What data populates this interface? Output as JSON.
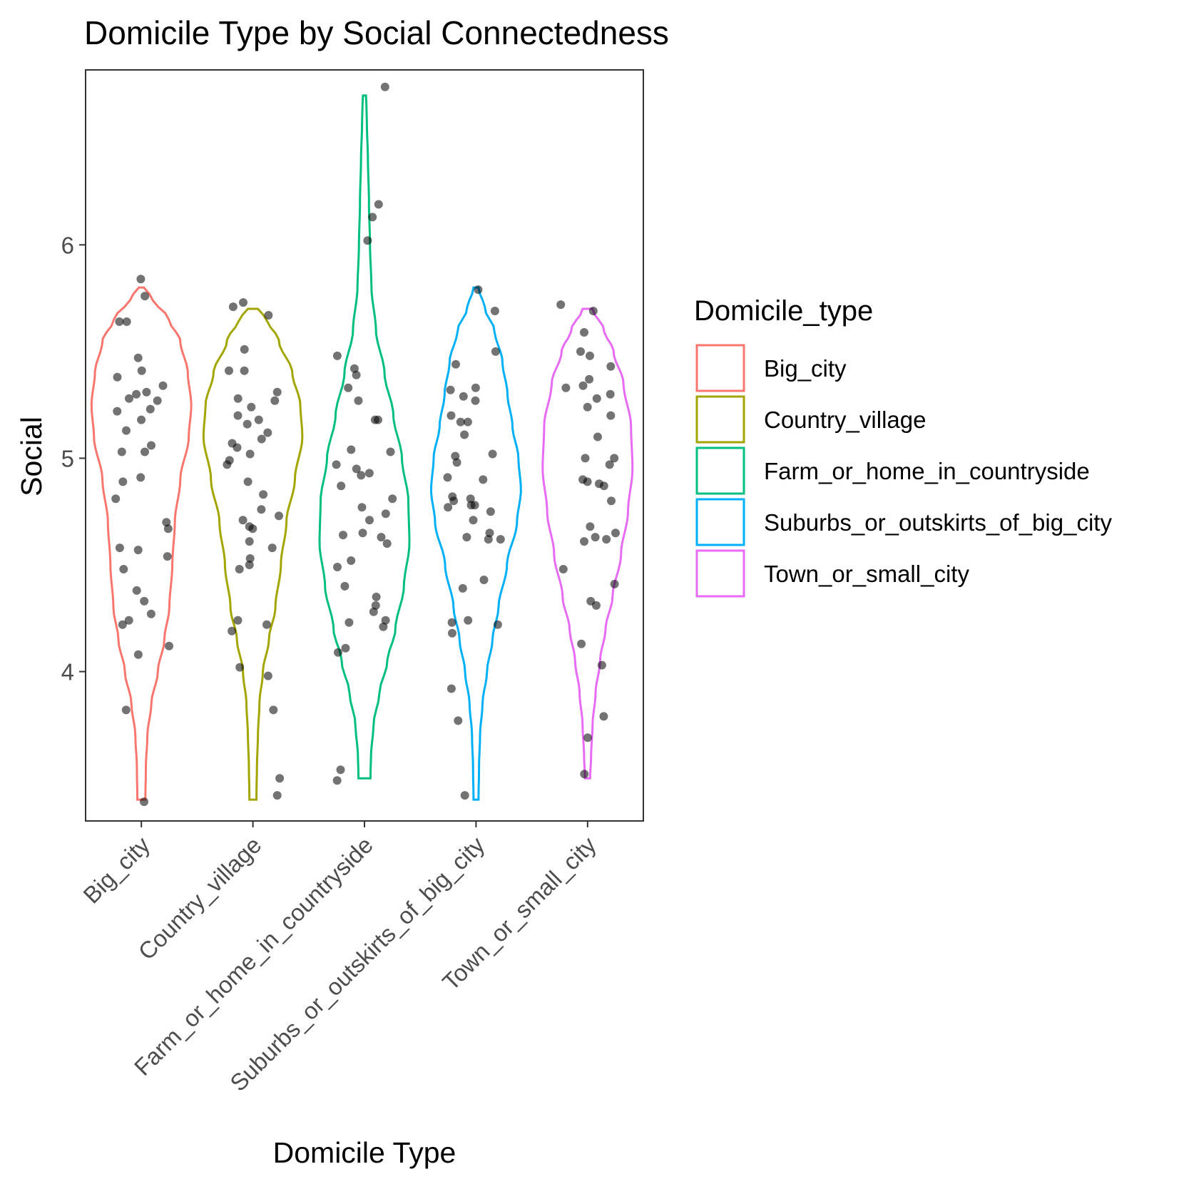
{
  "chart_data": {
    "type": "violin",
    "title": "Domicile Type by Social Connectedness",
    "xlabel": "Domicile Type",
    "ylabel": "Social",
    "ylim": [
      3.3,
      6.82
    ],
    "yticks": [
      4,
      5,
      6
    ],
    "grid": false,
    "legend": {
      "title": "Domicile_type",
      "placement": "right"
    },
    "categories": [
      "Big_city",
      "Country_village",
      "Farm_or_home_in_countryside",
      "Suburbs_or_outskirts_of_big_city",
      "Town_or_small_city"
    ],
    "colors": [
      "#F8766D",
      "#A3A500",
      "#00BF7D",
      "#00B0F6",
      "#E76BF3"
    ],
    "point_color": "#000000",
    "series": [
      {
        "name": "Big_city",
        "range": [
          3.4,
          5.8
        ],
        "density": [
          [
            3.4,
            0.08
          ],
          [
            3.55,
            0.09
          ],
          [
            3.7,
            0.12
          ],
          [
            3.85,
            0.2
          ],
          [
            4.0,
            0.33
          ],
          [
            4.15,
            0.46
          ],
          [
            4.3,
            0.56
          ],
          [
            4.5,
            0.62
          ],
          [
            4.7,
            0.67
          ],
          [
            4.9,
            0.78
          ],
          [
            5.1,
            0.95
          ],
          [
            5.25,
            1.0
          ],
          [
            5.4,
            0.93
          ],
          [
            5.55,
            0.78
          ],
          [
            5.65,
            0.55
          ],
          [
            5.75,
            0.22
          ],
          [
            5.8,
            0.05
          ]
        ],
        "points": [
          5.84,
          5.76,
          5.64,
          5.64,
          5.47,
          5.41,
          5.38,
          5.34,
          5.31,
          5.3,
          5.28,
          5.27,
          5.23,
          5.22,
          5.18,
          5.13,
          5.06,
          5.03,
          5.03,
          4.91,
          4.89,
          4.81,
          4.7,
          4.67,
          4.58,
          4.57,
          4.54,
          4.48,
          4.38,
          4.33,
          4.27,
          4.24,
          4.22,
          4.12,
          4.08,
          3.82,
          3.39
        ]
      },
      {
        "name": "Country_village",
        "range": [
          3.4,
          5.7
        ],
        "density": [
          [
            3.4,
            0.07
          ],
          [
            3.55,
            0.08
          ],
          [
            3.7,
            0.1
          ],
          [
            3.85,
            0.13
          ],
          [
            4.0,
            0.2
          ],
          [
            4.15,
            0.32
          ],
          [
            4.3,
            0.45
          ],
          [
            4.5,
            0.56
          ],
          [
            4.7,
            0.67
          ],
          [
            4.9,
            0.84
          ],
          [
            5.1,
            0.99
          ],
          [
            5.25,
            0.95
          ],
          [
            5.4,
            0.79
          ],
          [
            5.55,
            0.52
          ],
          [
            5.65,
            0.28
          ],
          [
            5.7,
            0.1
          ]
        ],
        "points": [
          5.73,
          5.71,
          5.67,
          5.51,
          5.41,
          5.41,
          5.31,
          5.28,
          5.27,
          5.24,
          5.2,
          5.18,
          5.16,
          5.12,
          5.09,
          5.07,
          5.05,
          5.02,
          4.99,
          4.97,
          4.89,
          4.83,
          4.76,
          4.73,
          4.71,
          4.68,
          4.67,
          4.61,
          4.58,
          4.53,
          4.5,
          4.48,
          4.24,
          4.22,
          4.19,
          4.02,
          3.98,
          3.82,
          3.5,
          3.42
        ]
      },
      {
        "name": "Farm_or_home_in_countryside",
        "range": [
          3.5,
          6.7
        ],
        "density": [
          [
            3.5,
            0.12
          ],
          [
            3.6,
            0.13
          ],
          [
            3.75,
            0.18
          ],
          [
            3.9,
            0.3
          ],
          [
            4.05,
            0.46
          ],
          [
            4.2,
            0.62
          ],
          [
            4.4,
            0.79
          ],
          [
            4.6,
            0.9
          ],
          [
            4.8,
            0.88
          ],
          [
            5.0,
            0.75
          ],
          [
            5.2,
            0.58
          ],
          [
            5.4,
            0.4
          ],
          [
            5.6,
            0.23
          ],
          [
            5.8,
            0.14
          ],
          [
            6.0,
            0.11
          ],
          [
            6.2,
            0.09
          ],
          [
            6.4,
            0.07
          ],
          [
            6.55,
            0.05
          ],
          [
            6.65,
            0.04
          ],
          [
            6.7,
            0.03
          ]
        ],
        "points": [
          6.74,
          6.19,
          6.13,
          6.02,
          5.48,
          5.42,
          5.39,
          5.33,
          5.27,
          5.18,
          5.18,
          5.04,
          5.03,
          4.97,
          4.95,
          4.93,
          4.92,
          4.87,
          4.81,
          4.77,
          4.74,
          4.71,
          4.65,
          4.64,
          4.63,
          4.6,
          4.52,
          4.49,
          4.4,
          4.35,
          4.31,
          4.28,
          4.24,
          4.23,
          4.21,
          4.11,
          4.09,
          3.54,
          3.49
        ]
      },
      {
        "name": "Suburbs_or_outskirts_of_big_city",
        "range": [
          3.4,
          5.8
        ],
        "density": [
          [
            3.4,
            0.05
          ],
          [
            3.55,
            0.06
          ],
          [
            3.7,
            0.08
          ],
          [
            3.85,
            0.13
          ],
          [
            4.0,
            0.22
          ],
          [
            4.15,
            0.33
          ],
          [
            4.3,
            0.45
          ],
          [
            4.5,
            0.62
          ],
          [
            4.7,
            0.82
          ],
          [
            4.85,
            0.9
          ],
          [
            5.0,
            0.85
          ],
          [
            5.15,
            0.73
          ],
          [
            5.3,
            0.63
          ],
          [
            5.45,
            0.53
          ],
          [
            5.6,
            0.37
          ],
          [
            5.7,
            0.18
          ],
          [
            5.8,
            0.05
          ]
        ],
        "points": [
          5.79,
          5.69,
          5.5,
          5.44,
          5.33,
          5.32,
          5.29,
          5.27,
          5.2,
          5.17,
          5.17,
          5.11,
          5.02,
          5.01,
          4.98,
          4.91,
          4.9,
          4.82,
          4.81,
          4.8,
          4.78,
          4.78,
          4.77,
          4.75,
          4.71,
          4.65,
          4.63,
          4.62,
          4.62,
          4.43,
          4.39,
          4.24,
          4.23,
          4.22,
          4.18,
          3.92,
          3.77,
          3.42
        ]
      },
      {
        "name": "Town_or_small_city",
        "range": [
          3.5,
          5.7
        ],
        "density": [
          [
            3.5,
            0.05
          ],
          [
            3.6,
            0.07
          ],
          [
            3.75,
            0.1
          ],
          [
            3.9,
            0.16
          ],
          [
            4.05,
            0.25
          ],
          [
            4.2,
            0.36
          ],
          [
            4.35,
            0.5
          ],
          [
            4.55,
            0.67
          ],
          [
            4.75,
            0.81
          ],
          [
            4.95,
            0.9
          ],
          [
            5.15,
            0.87
          ],
          [
            5.35,
            0.72
          ],
          [
            5.5,
            0.52
          ],
          [
            5.6,
            0.33
          ],
          [
            5.7,
            0.1
          ]
        ],
        "points": [
          5.72,
          5.69,
          5.59,
          5.5,
          5.48,
          5.43,
          5.37,
          5.34,
          5.33,
          5.3,
          5.28,
          5.24,
          5.2,
          5.1,
          5.0,
          5.0,
          4.97,
          4.9,
          4.89,
          4.88,
          4.87,
          4.8,
          4.68,
          4.65,
          4.63,
          4.62,
          4.61,
          4.48,
          4.41,
          4.33,
          4.31,
          4.13,
          4.03,
          3.79,
          3.69,
          3.52
        ]
      }
    ]
  }
}
